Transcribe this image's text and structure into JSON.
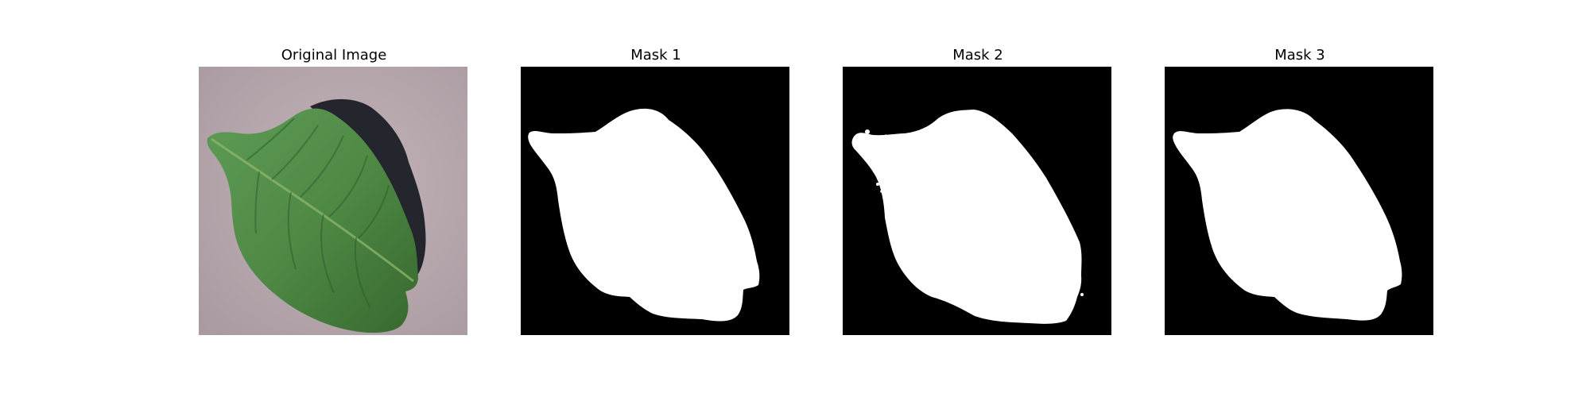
{
  "panels": [
    {
      "title": "Original Image",
      "kind": "photo"
    },
    {
      "title": "Mask 1",
      "kind": "mask"
    },
    {
      "title": "Mask 2",
      "kind": "mask"
    },
    {
      "title": "Mask 3",
      "kind": "mask"
    }
  ],
  "colors": {
    "background": "#ffffff",
    "mask_background": "#000000",
    "mask_foreground": "#ffffff",
    "photo_background": "#b7a7ad",
    "leaf_green": "#4f8a45",
    "leaf_dark": "#2f5d2f",
    "shadow": "#171a22"
  }
}
